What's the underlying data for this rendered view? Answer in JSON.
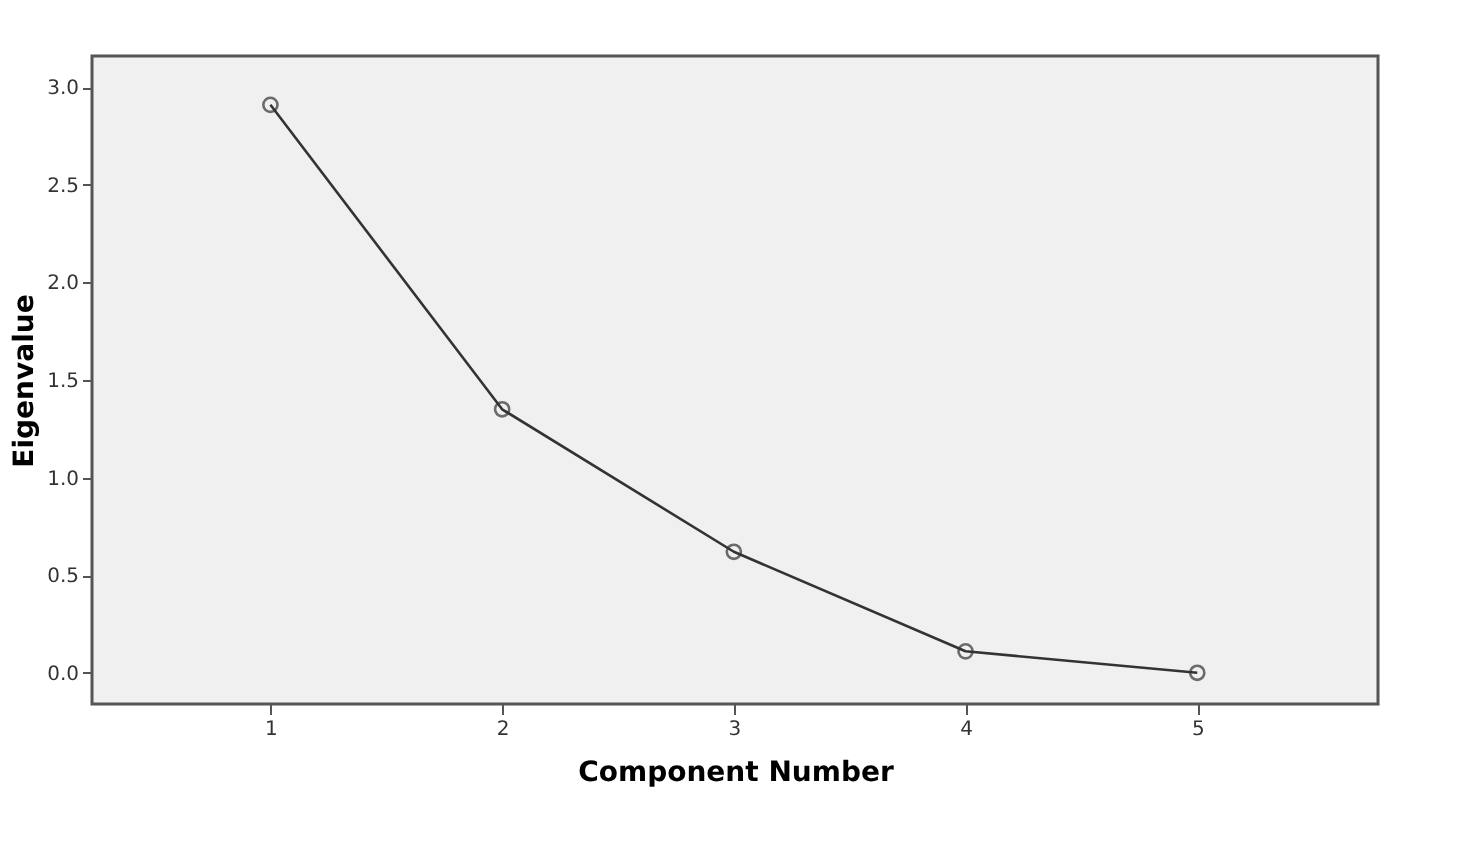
{
  "chart_data": {
    "type": "line",
    "xlabel": "Component Number",
    "ylabel": "Eigenvalue",
    "x": [
      1,
      2,
      3,
      4,
      5
    ],
    "series": [
      {
        "color": "#333333",
        "values": [
          2.91,
          1.35,
          0.62,
          0.11,
          0.0
        ]
      }
    ],
    "xlim": [
      0.23,
      5.78
    ],
    "xticks": [
      1,
      2,
      3,
      4,
      5
    ],
    "ylim": [
      -0.16,
      3.16
    ],
    "yticks": [
      {
        "value": 0,
        "label": "0.0"
      },
      0.5,
      {
        "value": 1,
        "label": "1.0"
      },
      1.5,
      {
        "value": 2,
        "label": "2.0"
      },
      2.5,
      {
        "value": 3,
        "label": "3.0"
      }
    ],
    "grid": false,
    "marker": "circle",
    "line_style": "solid"
  }
}
